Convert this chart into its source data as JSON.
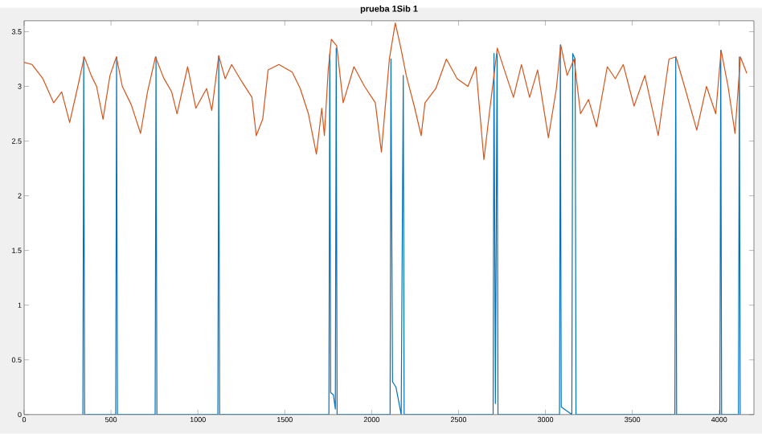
{
  "chart_data": {
    "type": "line",
    "title": "prueba 1Sib 1",
    "xlim": [
      0,
      4200
    ],
    "ylim": [
      0,
      3.6
    ],
    "xticks": [
      0,
      500,
      1000,
      1500,
      2000,
      2500,
      3000,
      3500,
      4000
    ],
    "yticks": [
      0,
      0.5,
      1,
      1.5,
      2,
      2.5,
      3,
      3.5
    ],
    "grid": false,
    "marker": "none",
    "line_style": "solid",
    "series": [
      {
        "color": "#0072bd",
        "x": [
          338,
          343,
          348,
          527,
          532,
          537,
          754,
          759,
          764,
          1115,
          1120,
          1125,
          1754,
          1759,
          1764,
          1780,
          1791,
          1796,
          1801,
          2106,
          2111,
          2120,
          2140,
          2170,
          2182,
          2187,
          2699,
          2704,
          2712,
          2722,
          2727,
          3081,
          3086,
          3091,
          3152,
          3157,
          3171,
          3176,
          3745,
          3750,
          3755,
          4004,
          4009,
          4014,
          4111,
          4116,
          4121
        ],
        "values": [
          0,
          3.27,
          0,
          0,
          3.27,
          0,
          0,
          3.27,
          0,
          0,
          3.28,
          0,
          0,
          3.3,
          0.2,
          0.18,
          0.05,
          3.35,
          0,
          0,
          3.25,
          0.3,
          0.25,
          0,
          3.1,
          0,
          0,
          3.3,
          0.1,
          3.3,
          0,
          0,
          3.38,
          0.07,
          0,
          3.3,
          3.25,
          0,
          0,
          3.27,
          0,
          0,
          3.33,
          0,
          0,
          3.27,
          0
        ]
      },
      {
        "color": "#d95319",
        "x": [
          0,
          46,
          108,
          170,
          216,
          262,
          309,
          346,
          386,
          417,
          454,
          494,
          531,
          565,
          617,
          670,
          710,
          756,
          802,
          849,
          880,
          941,
          988,
          1050,
          1080,
          1120,
          1157,
          1194,
          1250,
          1311,
          1336,
          1373,
          1404,
          1466,
          1543,
          1589,
          1636,
          1682,
          1713,
          1728,
          1750,
          1768,
          1799,
          1836,
          1898,
          1959,
          2021,
          2056,
          2102,
          2136,
          2168,
          2199,
          2245,
          2285,
          2307,
          2369,
          2430,
          2492,
          2554,
          2600,
          2646,
          2677,
          2723,
          2770,
          2816,
          2862,
          2909,
          2955,
          3017,
          3063,
          3088,
          3125,
          3165,
          3202,
          3248,
          3294,
          3356,
          3402,
          3448,
          3510,
          3572,
          3649,
          3711,
          3751,
          3804,
          3871,
          3927,
          3980,
          4011,
          4051,
          4091,
          4122,
          4159
        ],
        "values": [
          3.22,
          3.2,
          3.07,
          2.85,
          2.95,
          2.67,
          3.0,
          3.27,
          3.1,
          3.0,
          2.7,
          3.1,
          3.27,
          3.0,
          2.83,
          2.57,
          2.95,
          3.27,
          3.08,
          2.95,
          2.75,
          3.18,
          2.8,
          2.98,
          2.78,
          3.28,
          3.07,
          3.2,
          3.05,
          2.9,
          2.55,
          2.7,
          3.15,
          3.2,
          3.13,
          2.98,
          2.75,
          2.38,
          2.8,
          2.55,
          3.15,
          3.43,
          3.37,
          2.85,
          3.18,
          3.0,
          2.85,
          2.4,
          3.25,
          3.58,
          3.35,
          3.1,
          2.82,
          2.55,
          2.85,
          2.98,
          3.25,
          3.07,
          3.0,
          3.18,
          2.33,
          2.75,
          3.35,
          3.12,
          2.9,
          3.2,
          2.9,
          3.15,
          2.53,
          2.98,
          3.38,
          3.1,
          3.25,
          2.75,
          2.88,
          2.63,
          3.18,
          3.07,
          3.2,
          2.82,
          3.1,
          2.55,
          3.25,
          3.27,
          2.98,
          2.6,
          3.0,
          2.75,
          3.33,
          3.0,
          2.57,
          3.27,
          3.12
        ]
      }
    ]
  }
}
